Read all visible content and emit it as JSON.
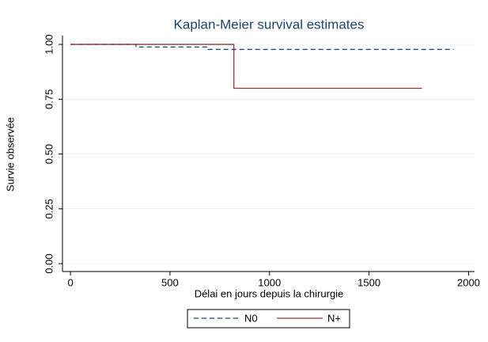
{
  "chart_data": {
    "type": "step",
    "title": "Kaplan-Meier survival estimates",
    "x_label": "Délai en jours depuis la chirurgie",
    "y_label": "Survie observée",
    "series": [
      {
        "name": "N0",
        "color": "#1a476f",
        "dash": true,
        "x": [
          0,
          329,
          686,
          1925
        ],
        "values": [
          1,
          0.988,
          0.977,
          0.977
        ]
      },
      {
        "name": "N+",
        "color": "#90353b",
        "dash": false,
        "x": [
          0,
          821,
          1766
        ],
        "values": [
          1,
          0.8,
          0.8
        ]
      }
    ],
    "xlim": [
      -40,
      2030
    ],
    "xticks": [
      0,
      500,
      1000,
      1500,
      2000
    ],
    "ylim": [
      -0.036,
      1.04
    ],
    "yticks": [
      {
        "value": 0,
        "label": "0.00"
      },
      {
        "value": 0.25,
        "label": "0.25"
      },
      {
        "value": 0.5,
        "label": "0.50"
      },
      {
        "value": 0.75,
        "label": "0.75"
      },
      {
        "value": 1,
        "label": "1.00"
      }
    ],
    "grid": true
  }
}
